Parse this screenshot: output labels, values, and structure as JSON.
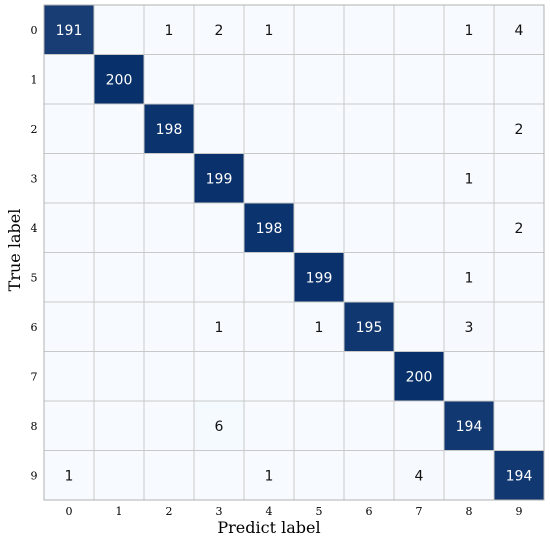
{
  "chart_data": {
    "type": "heatmap",
    "title": "",
    "xlabel": "Predict label",
    "ylabel": "True label",
    "x_categories": [
      "0",
      "1",
      "2",
      "3",
      "4",
      "5",
      "6",
      "7",
      "8",
      "9"
    ],
    "y_categories": [
      "0",
      "1",
      "2",
      "3",
      "4",
      "5",
      "6",
      "7",
      "8",
      "9"
    ],
    "matrix": [
      [
        191,
        0,
        1,
        2,
        1,
        0,
        0,
        0,
        1,
        4
      ],
      [
        0,
        200,
        0,
        0,
        0,
        0,
        0,
        0,
        0,
        0
      ],
      [
        0,
        0,
        198,
        0,
        0,
        0,
        0,
        0,
        0,
        2
      ],
      [
        0,
        0,
        0,
        199,
        0,
        0,
        0,
        0,
        1,
        0
      ],
      [
        0,
        0,
        0,
        0,
        198,
        0,
        0,
        0,
        0,
        2
      ],
      [
        0,
        0,
        0,
        0,
        0,
        199,
        0,
        0,
        1,
        0
      ],
      [
        0,
        0,
        0,
        1,
        0,
        1,
        195,
        0,
        3,
        0
      ],
      [
        0,
        0,
        0,
        0,
        0,
        0,
        0,
        200,
        0,
        0
      ],
      [
        0,
        0,
        0,
        6,
        0,
        0,
        0,
        0,
        194,
        0
      ],
      [
        1,
        0,
        0,
        0,
        1,
        0,
        0,
        4,
        0,
        194
      ]
    ],
    "hide_zero_values": true,
    "value_range": [
      0,
      200
    ],
    "colormap": "Blues",
    "grid": true
  },
  "colors": {
    "low": "#f7fbff",
    "high": "#08306b",
    "grid": "#c8c8c8",
    "text_dark": "#111111",
    "text_light": "#ffffff"
  }
}
